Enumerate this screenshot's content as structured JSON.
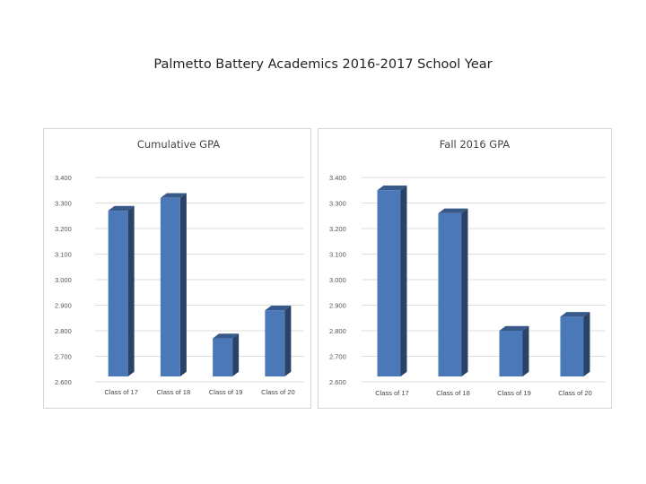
{
  "page": {
    "title": "Palmetto Battery Academics 2016-2017 School Year"
  },
  "chart_data": [
    {
      "type": "bar",
      "title": "Cumulative GPA",
      "categories": [
        "Class of 17",
        "Class of 18",
        "Class of 19",
        "Class of 20"
      ],
      "values": [
        3.27,
        3.32,
        2.77,
        2.88
      ],
      "ylim": [
        2.6,
        3.4
      ],
      "yticks": [
        "3.400",
        "3.300",
        "3.200",
        "3.100",
        "3.000",
        "2.900",
        "2.800",
        "2.700",
        "2.600"
      ],
      "grid": true,
      "color": "#4a78b8"
    },
    {
      "type": "bar",
      "title": "Fall 2016 GPA",
      "categories": [
        "Class of 17",
        "Class of 18",
        "Class of 19",
        "Class of 20"
      ],
      "values": [
        3.35,
        3.26,
        2.8,
        2.855
      ],
      "ylim": [
        2.6,
        3.4
      ],
      "yticks": [
        "3.400",
        "3.300",
        "3.200",
        "3.100",
        "3.000",
        "2.900",
        "2.800",
        "2.700",
        "2.600"
      ],
      "grid": true,
      "color": "#4a78b8"
    }
  ]
}
